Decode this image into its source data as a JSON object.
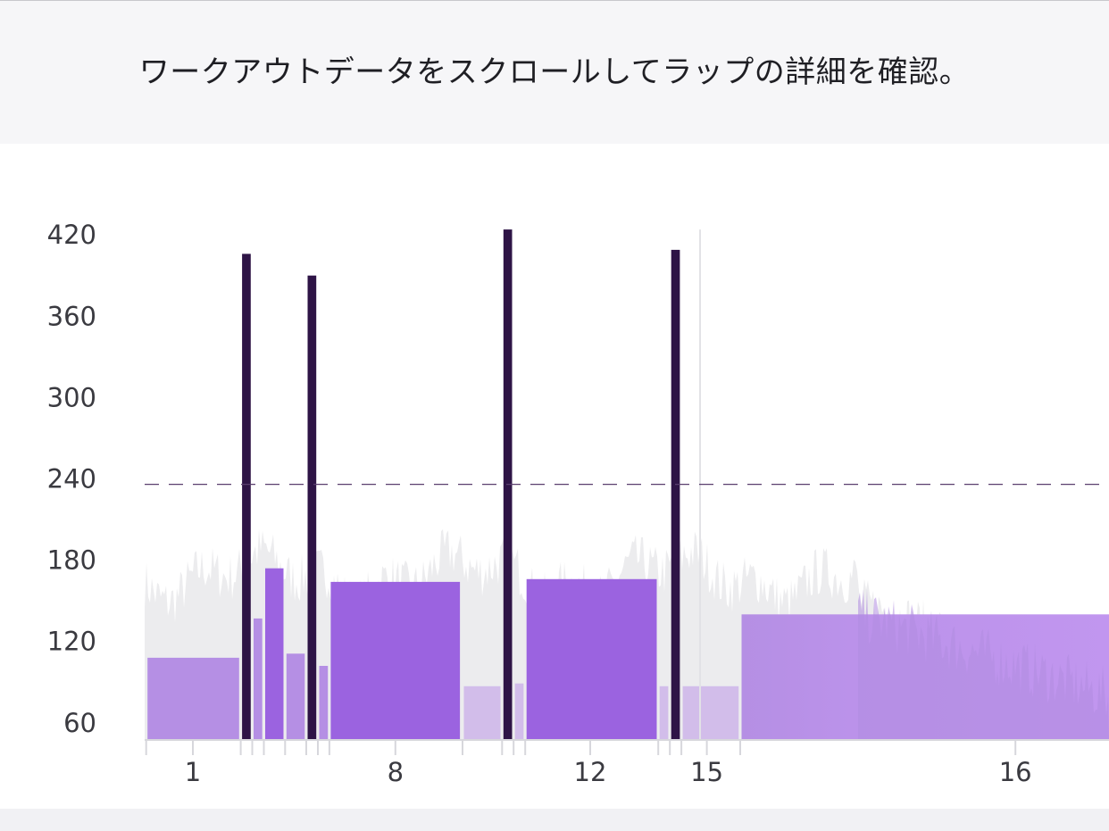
{
  "instruction": "ワークアウトデータをスクロールしてラップの詳細を確認。",
  "colors": {
    "header_bg": "#f6f6f8",
    "background_trace": "#ececee",
    "lap_dark": "#2e1446",
    "lap_strong": "#9b63e0",
    "lap_medium": "#b58fe4",
    "lap_light": "#d2bdea",
    "lap_bright": "#c196ef",
    "threshold_line": "#5a3f6e"
  },
  "chart_data": {
    "type": "bar",
    "ylim": [
      48,
      430
    ],
    "yticks": [
      60,
      120,
      180,
      240,
      300,
      360,
      420
    ],
    "threshold": 236,
    "grid": false,
    "x_range": [
      0,
      1000
    ],
    "x_tick_labels": [
      {
        "label": "1",
        "x": 50
      },
      {
        "label": "8",
        "x": 260
      },
      {
        "label": "12",
        "x": 462
      },
      {
        "label": "15",
        "x": 583
      },
      {
        "label": "16",
        "x": 903
      }
    ],
    "laps": [
      {
        "start": 3,
        "end": 98,
        "value": 108,
        "tone": "medium"
      },
      {
        "start": 101,
        "end": 110,
        "value": 406,
        "tone": "dark"
      },
      {
        "start": 113,
        "end": 122,
        "value": 137,
        "tone": "medium"
      },
      {
        "start": 125,
        "end": 144,
        "value": 174,
        "tone": "strong"
      },
      {
        "start": 147,
        "end": 166,
        "value": 111,
        "tone": "medium"
      },
      {
        "start": 169,
        "end": 178,
        "value": 390,
        "tone": "dark"
      },
      {
        "start": 181,
        "end": 190,
        "value": 102,
        "tone": "medium"
      },
      {
        "start": 193,
        "end": 327,
        "value": 164,
        "tone": "strong"
      },
      {
        "start": 331,
        "end": 369,
        "value": 87,
        "tone": "light"
      },
      {
        "start": 372,
        "end": 381,
        "value": 424,
        "tone": "dark"
      },
      {
        "start": 384,
        "end": 393,
        "value": 89,
        "tone": "light"
      },
      {
        "start": 396,
        "end": 531,
        "value": 166,
        "tone": "strong"
      },
      {
        "start": 534,
        "end": 543,
        "value": 87,
        "tone": "light"
      },
      {
        "start": 546,
        "end": 555,
        "value": 409,
        "tone": "dark"
      },
      {
        "start": 558,
        "end": 616,
        "value": 87,
        "tone": "light"
      },
      {
        "start": 619,
        "end": 1000,
        "value": 140,
        "tone": "medium_bright"
      }
    ]
  }
}
